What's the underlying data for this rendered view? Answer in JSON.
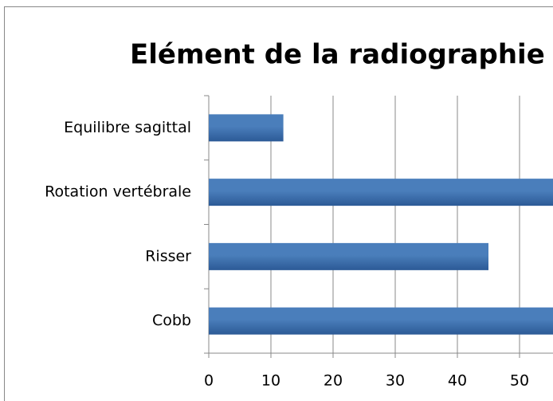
{
  "chart_data": {
    "type": "bar",
    "orientation": "horizontal",
    "title": "Elément de la radiographie",
    "categories": [
      "Cobb",
      "Risser",
      "Rotation vertébrale",
      "Equilibre sagittal"
    ],
    "values": [
      60,
      45,
      60,
      12
    ],
    "color": "#4a7ebb",
    "xlim": [
      0,
      70
    ],
    "xticks": [
      0,
      10,
      20,
      30,
      40,
      50
    ],
    "grid": true
  }
}
